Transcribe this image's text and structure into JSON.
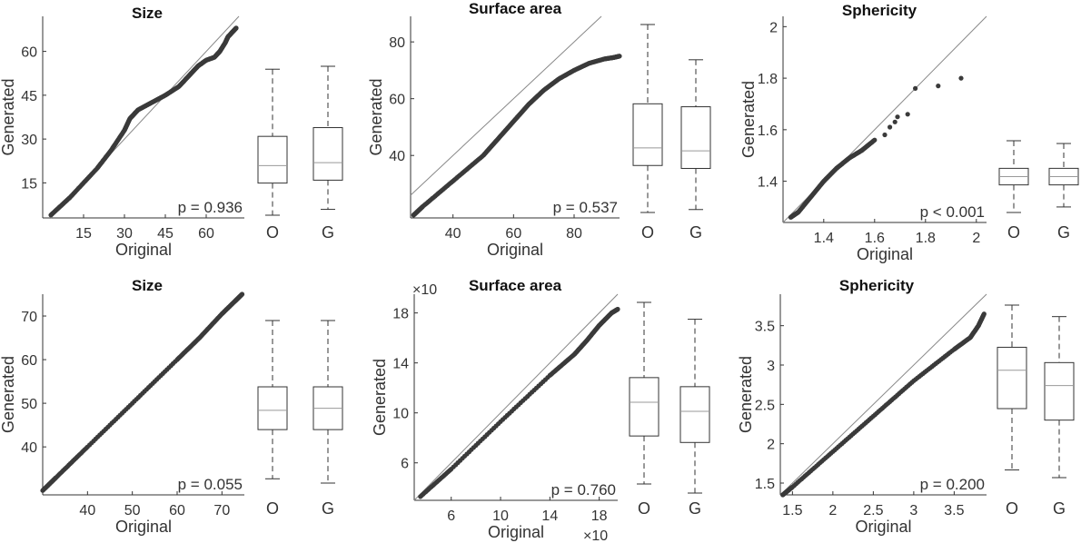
{
  "chart_data": [
    {
      "type": "scatter",
      "title": "Size",
      "xlabel": "Original",
      "ylabel": "Generated",
      "xlim": [
        0,
        74
      ],
      "ylim": [
        3,
        72
      ],
      "xticks": [
        15,
        30,
        45,
        60
      ],
      "yticks": [
        15,
        30,
        45,
        60
      ],
      "p_label": "p = 0.936",
      "qq_curve": [
        [
          3,
          4
        ],
        [
          10,
          10
        ],
        [
          20,
          20
        ],
        [
          25,
          26
        ],
        [
          30,
          33
        ],
        [
          32,
          37
        ],
        [
          35,
          40
        ],
        [
          40,
          42.5
        ],
        [
          45,
          45
        ],
        [
          50,
          48
        ],
        [
          54,
          52
        ],
        [
          57,
          55
        ],
        [
          60,
          57
        ],
        [
          63,
          58
        ],
        [
          65,
          60
        ],
        [
          67,
          63
        ],
        [
          68,
          65
        ],
        [
          70,
          67
        ],
        [
          71,
          68
        ]
      ],
      "boxplot": {
        "categories": [
          "O",
          "G"
        ],
        "O": {
          "min": 7,
          "q1": 18,
          "median": 24,
          "q3": 34,
          "max": 57
        },
        "G": {
          "min": 9,
          "q1": 19,
          "median": 25,
          "q3": 37,
          "max": 58
        }
      }
    },
    {
      "type": "scatter",
      "title": "Surface area",
      "xlabel": "Original",
      "ylabel": "Generated",
      "xlim": [
        26,
        95
      ],
      "ylim": [
        18,
        89
      ],
      "xticks": [
        40,
        60,
        80
      ],
      "yticks": [
        40,
        60,
        80
      ],
      "p_label": "p = 0.537",
      "qq_curve": [
        [
          27,
          19
        ],
        [
          30,
          22
        ],
        [
          40,
          31
        ],
        [
          50,
          40
        ],
        [
          55,
          46
        ],
        [
          60,
          52
        ],
        [
          65,
          58
        ],
        [
          70,
          63
        ],
        [
          75,
          67
        ],
        [
          80,
          70
        ],
        [
          85,
          72.5
        ],
        [
          90,
          74
        ],
        [
          93,
          74.5
        ],
        [
          95,
          75
        ]
      ],
      "boxplot": {
        "categories": [
          "O",
          "G"
        ],
        "O": {
          "min": 21,
          "q1": 37,
          "median": 43,
          "q3": 58,
          "max": 85
        },
        "G": {
          "min": 22,
          "q1": 36,
          "median": 42,
          "q3": 57,
          "max": 73
        }
      }
    },
    {
      "type": "scatter",
      "title": "Sphericity",
      "xlabel": "Original",
      "ylabel": "Generated",
      "xlim": [
        1.24,
        2.04
      ],
      "ylim": [
        1.24,
        2.04
      ],
      "xticks": [
        1.4,
        1.6,
        1.8,
        2
      ],
      "yticks": [
        1.4,
        1.6,
        1.8,
        2
      ],
      "xtick_labels": [
        "1.4",
        "1.6",
        "1.8",
        "2"
      ],
      "ytick_labels": [
        "1.4",
        "1.6",
        "1.8",
        "2"
      ],
      "p_label": "p < 0.001",
      "qq_curve": [
        [
          1.27,
          1.26
        ],
        [
          1.3,
          1.28
        ],
        [
          1.35,
          1.34
        ],
        [
          1.4,
          1.4
        ],
        [
          1.45,
          1.45
        ],
        [
          1.5,
          1.49
        ],
        [
          1.55,
          1.52
        ],
        [
          1.6,
          1.56
        ]
      ],
      "outliers": [
        [
          1.64,
          1.58
        ],
        [
          1.66,
          1.61
        ],
        [
          1.68,
          1.63
        ],
        [
          1.69,
          1.65
        ],
        [
          1.73,
          1.66
        ],
        [
          1.76,
          1.76
        ],
        [
          1.85,
          1.77
        ],
        [
          1.94,
          1.8
        ]
      ],
      "boxplot": {
        "categories": [
          "O",
          "G"
        ],
        "O": {
          "min": 1.29,
          "q1": 1.39,
          "median": 1.42,
          "q3": 1.45,
          "max": 1.55
        },
        "G": {
          "min": 1.31,
          "q1": 1.39,
          "median": 1.42,
          "q3": 1.45,
          "max": 1.54
        }
      }
    },
    {
      "type": "scatter",
      "title": "Size",
      "xlabel": "Original",
      "ylabel": "Generated",
      "xlim": [
        30,
        75
      ],
      "ylim": [
        29,
        75
      ],
      "xticks": [
        40,
        50,
        60,
        70
      ],
      "yticks": [
        40,
        50,
        60,
        70
      ],
      "p_label": "p = 0.055",
      "qq_curve": [
        [
          30,
          30
        ],
        [
          33,
          33
        ],
        [
          40,
          40
        ],
        [
          50,
          50
        ],
        [
          60,
          60
        ],
        [
          65,
          65
        ],
        [
          70,
          70.5
        ],
        [
          73,
          73.5
        ],
        [
          74.5,
          75
        ]
      ],
      "boxplot": {
        "categories": [
          "O",
          "G"
        ],
        "O": {
          "min": 32,
          "q1": 43.5,
          "median": 48,
          "q3": 53.5,
          "max": 69
        },
        "G": {
          "min": 31,
          "q1": 43.5,
          "median": 48.5,
          "q3": 53.5,
          "max": 69
        }
      }
    },
    {
      "type": "scatter",
      "title": "Surface area",
      "xlabel": "Original",
      "ylabel": "Generated",
      "xlim": [
        3,
        19.5
      ],
      "ylim": [
        3,
        19.5
      ],
      "xticks": [
        6,
        10,
        14,
        18
      ],
      "yticks": [
        6,
        10,
        14,
        18
      ],
      "x_multiplier": "×10",
      "y_multiplier": "×10",
      "p_label": "p = 0.760",
      "qq_curve": [
        [
          3.5,
          3.3
        ],
        [
          6,
          5.5
        ],
        [
          10,
          9.3
        ],
        [
          14,
          13
        ],
        [
          16,
          14.7
        ],
        [
          17,
          15.8
        ],
        [
          18,
          17
        ],
        [
          19,
          18
        ],
        [
          19.5,
          18.3
        ]
      ],
      "boxplot": {
        "categories": [
          "O",
          "G"
        ],
        "O": {
          "min": 5,
          "q1": 8.7,
          "median": 11.3,
          "q3": 13.2,
          "max": 19
        },
        "G": {
          "min": 4.3,
          "q1": 8.2,
          "median": 10.6,
          "q3": 12.5,
          "max": 17.7
        }
      }
    },
    {
      "type": "scatter",
      "title": "Sphericity",
      "xlabel": "Original",
      "ylabel": "Generated",
      "xlim": [
        1.35,
        3.9
      ],
      "ylim": [
        1.35,
        3.9
      ],
      "xticks": [
        1.5,
        2,
        2.5,
        3,
        3.5
      ],
      "yticks": [
        1.5,
        2,
        2.5,
        3,
        3.5
      ],
      "xtick_labels": [
        "1.5",
        "2",
        "2.5",
        "3",
        "3.5"
      ],
      "ytick_labels": [
        "1.5",
        "2",
        "2.5",
        "3",
        "3.5"
      ],
      "p_label": "p = 0.200",
      "qq_curve": [
        [
          1.38,
          1.35
        ],
        [
          1.5,
          1.45
        ],
        [
          2,
          1.9
        ],
        [
          2.5,
          2.35
        ],
        [
          3,
          2.8
        ],
        [
          3.5,
          3.2
        ],
        [
          3.7,
          3.35
        ],
        [
          3.8,
          3.5
        ],
        [
          3.87,
          3.65
        ]
      ],
      "boxplot": {
        "categories": [
          "O",
          "G"
        ],
        "O": {
          "min": 1.6,
          "q1": 2.4,
          "median": 2.9,
          "q3": 3.2,
          "max": 3.75
        },
        "G": {
          "min": 1.5,
          "q1": 2.25,
          "median": 2.7,
          "q3": 3.0,
          "max": 3.6
        }
      }
    }
  ]
}
